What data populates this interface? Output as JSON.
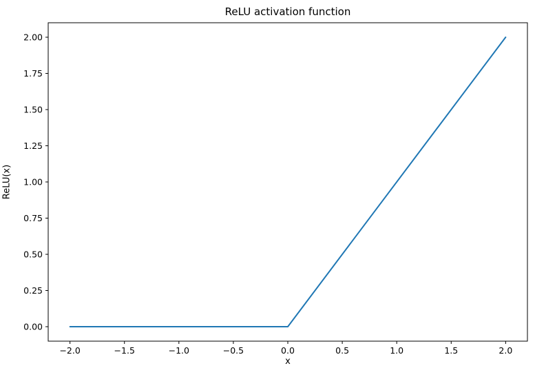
{
  "figure": {
    "background": "#ffffff",
    "frame_color": "#000000",
    "tick_color": "#000000",
    "text_color": "#000000"
  },
  "chart_data": {
    "type": "line",
    "title": "ReLU activation function",
    "xlabel": "x",
    "ylabel": "ReLU(x)",
    "xlim": [
      -2.2,
      2.2
    ],
    "ylim": [
      -0.1,
      2.1
    ],
    "grid": false,
    "legend": null,
    "x_ticks": [
      -2.0,
      -1.5,
      -1.0,
      -0.5,
      0.0,
      0.5,
      1.0,
      1.5,
      2.0
    ],
    "x_tick_labels": [
      "−2.0",
      "−1.5",
      "−1.0",
      "−0.5",
      "0.0",
      "0.5",
      "1.0",
      "1.5",
      "2.0"
    ],
    "y_ticks": [
      0.0,
      0.25,
      0.5,
      0.75,
      1.0,
      1.25,
      1.5,
      1.75,
      2.0
    ],
    "y_tick_labels": [
      "0.00",
      "0.25",
      "0.50",
      "0.75",
      "1.00",
      "1.25",
      "1.50",
      "1.75",
      "2.00"
    ],
    "series": [
      {
        "name": "ReLU",
        "color": "#1f77b4",
        "x": [
          -2.0,
          0.0,
          2.0
        ],
        "y": [
          0.0,
          0.0,
          2.0
        ]
      }
    ]
  }
}
